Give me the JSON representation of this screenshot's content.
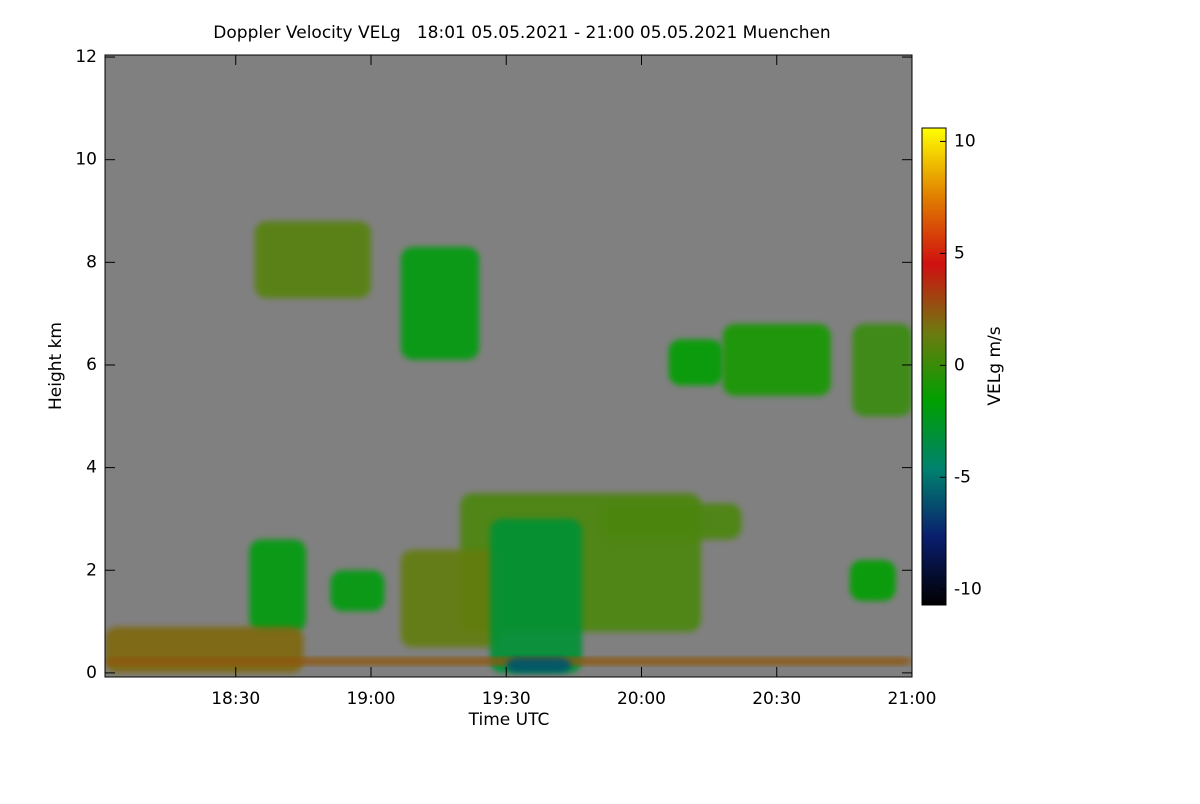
{
  "chart_data": {
    "type": "heatmap",
    "title": "Doppler Velocity VELg   18:01 05.05.2021 - 21:00 05.05.2021 Muenchen",
    "xlabel": "Time UTC",
    "ylabel": "Height km",
    "xlim": [
      18.0167,
      21
    ],
    "ylim": [
      -0.08,
      12.04
    ],
    "xticks": [
      {
        "value": 18.5,
        "label": "18:30"
      },
      {
        "value": 19,
        "label": "19:00"
      },
      {
        "value": 19.5,
        "label": "19:30"
      },
      {
        "value": 20,
        "label": "20:00"
      },
      {
        "value": 20.5,
        "label": "20:30"
      },
      {
        "value": 21,
        "label": "21:00"
      }
    ],
    "yticks": [
      0,
      2,
      4,
      6,
      8,
      10,
      12
    ],
    "background": "#808080",
    "colorbar": {
      "label": "VELg m/s",
      "clim": [
        -10.7,
        10.6
      ],
      "ticks": [
        -10,
        -5,
        0,
        5,
        10
      ],
      "colormap": [
        "#000000",
        "#0a1e6e",
        "#00826e",
        "#00a000",
        "#6e7a10",
        "#d01010",
        "#e08000",
        "#ffff00"
      ]
    },
    "regions": [
      {
        "x": [
          18.57,
          19.0
        ],
        "y": [
          7.3,
          8.8
        ],
        "value": 0.8
      },
      {
        "x": [
          19.11,
          19.4
        ],
        "y": [
          6.1,
          8.3
        ],
        "value": -2
      },
      {
        "x": [
          20.1,
          20.3
        ],
        "y": [
          5.6,
          6.5
        ],
        "value": -1.5
      },
      {
        "x": [
          20.3,
          20.7
        ],
        "y": [
          5.4,
          6.8
        ],
        "value": -1
      },
      {
        "x": [
          20.78,
          21.0
        ],
        "y": [
          5.0,
          6.8
        ],
        "value": 0
      },
      {
        "x": [
          18.55,
          18.76
        ],
        "y": [
          0.8,
          2.6
        ],
        "value": -2
      },
      {
        "x": [
          18.85,
          19.05
        ],
        "y": [
          1.2,
          2.0
        ],
        "value": -2
      },
      {
        "x": [
          19.33,
          20.22
        ],
        "y": [
          0.8,
          3.5
        ],
        "value": 0.5
      },
      {
        "x": [
          19.11,
          19.48
        ],
        "y": [
          0.5,
          2.4
        ],
        "value": 1.2
      },
      {
        "x": [
          19.44,
          19.78
        ],
        "y": [
          0.0,
          3.0
        ],
        "value": -3
      },
      {
        "x": [
          19.85,
          20.37
        ],
        "y": [
          2.6,
          3.3
        ],
        "value": 0.5
      },
      {
        "x": [
          20.77,
          20.94
        ],
        "y": [
          1.4,
          2.2
        ],
        "value": -1.5
      },
      {
        "x": [
          18.0167,
          18.75
        ],
        "y": [
          0.0,
          0.9
        ],
        "value": 2
      },
      {
        "x": [
          18.0167,
          21.0
        ],
        "y": [
          0.15,
          0.3
        ],
        "value": 2.5
      },
      {
        "x": [
          19.5,
          19.74
        ],
        "y": [
          0.0,
          0.3
        ],
        "value": -6
      }
    ]
  }
}
